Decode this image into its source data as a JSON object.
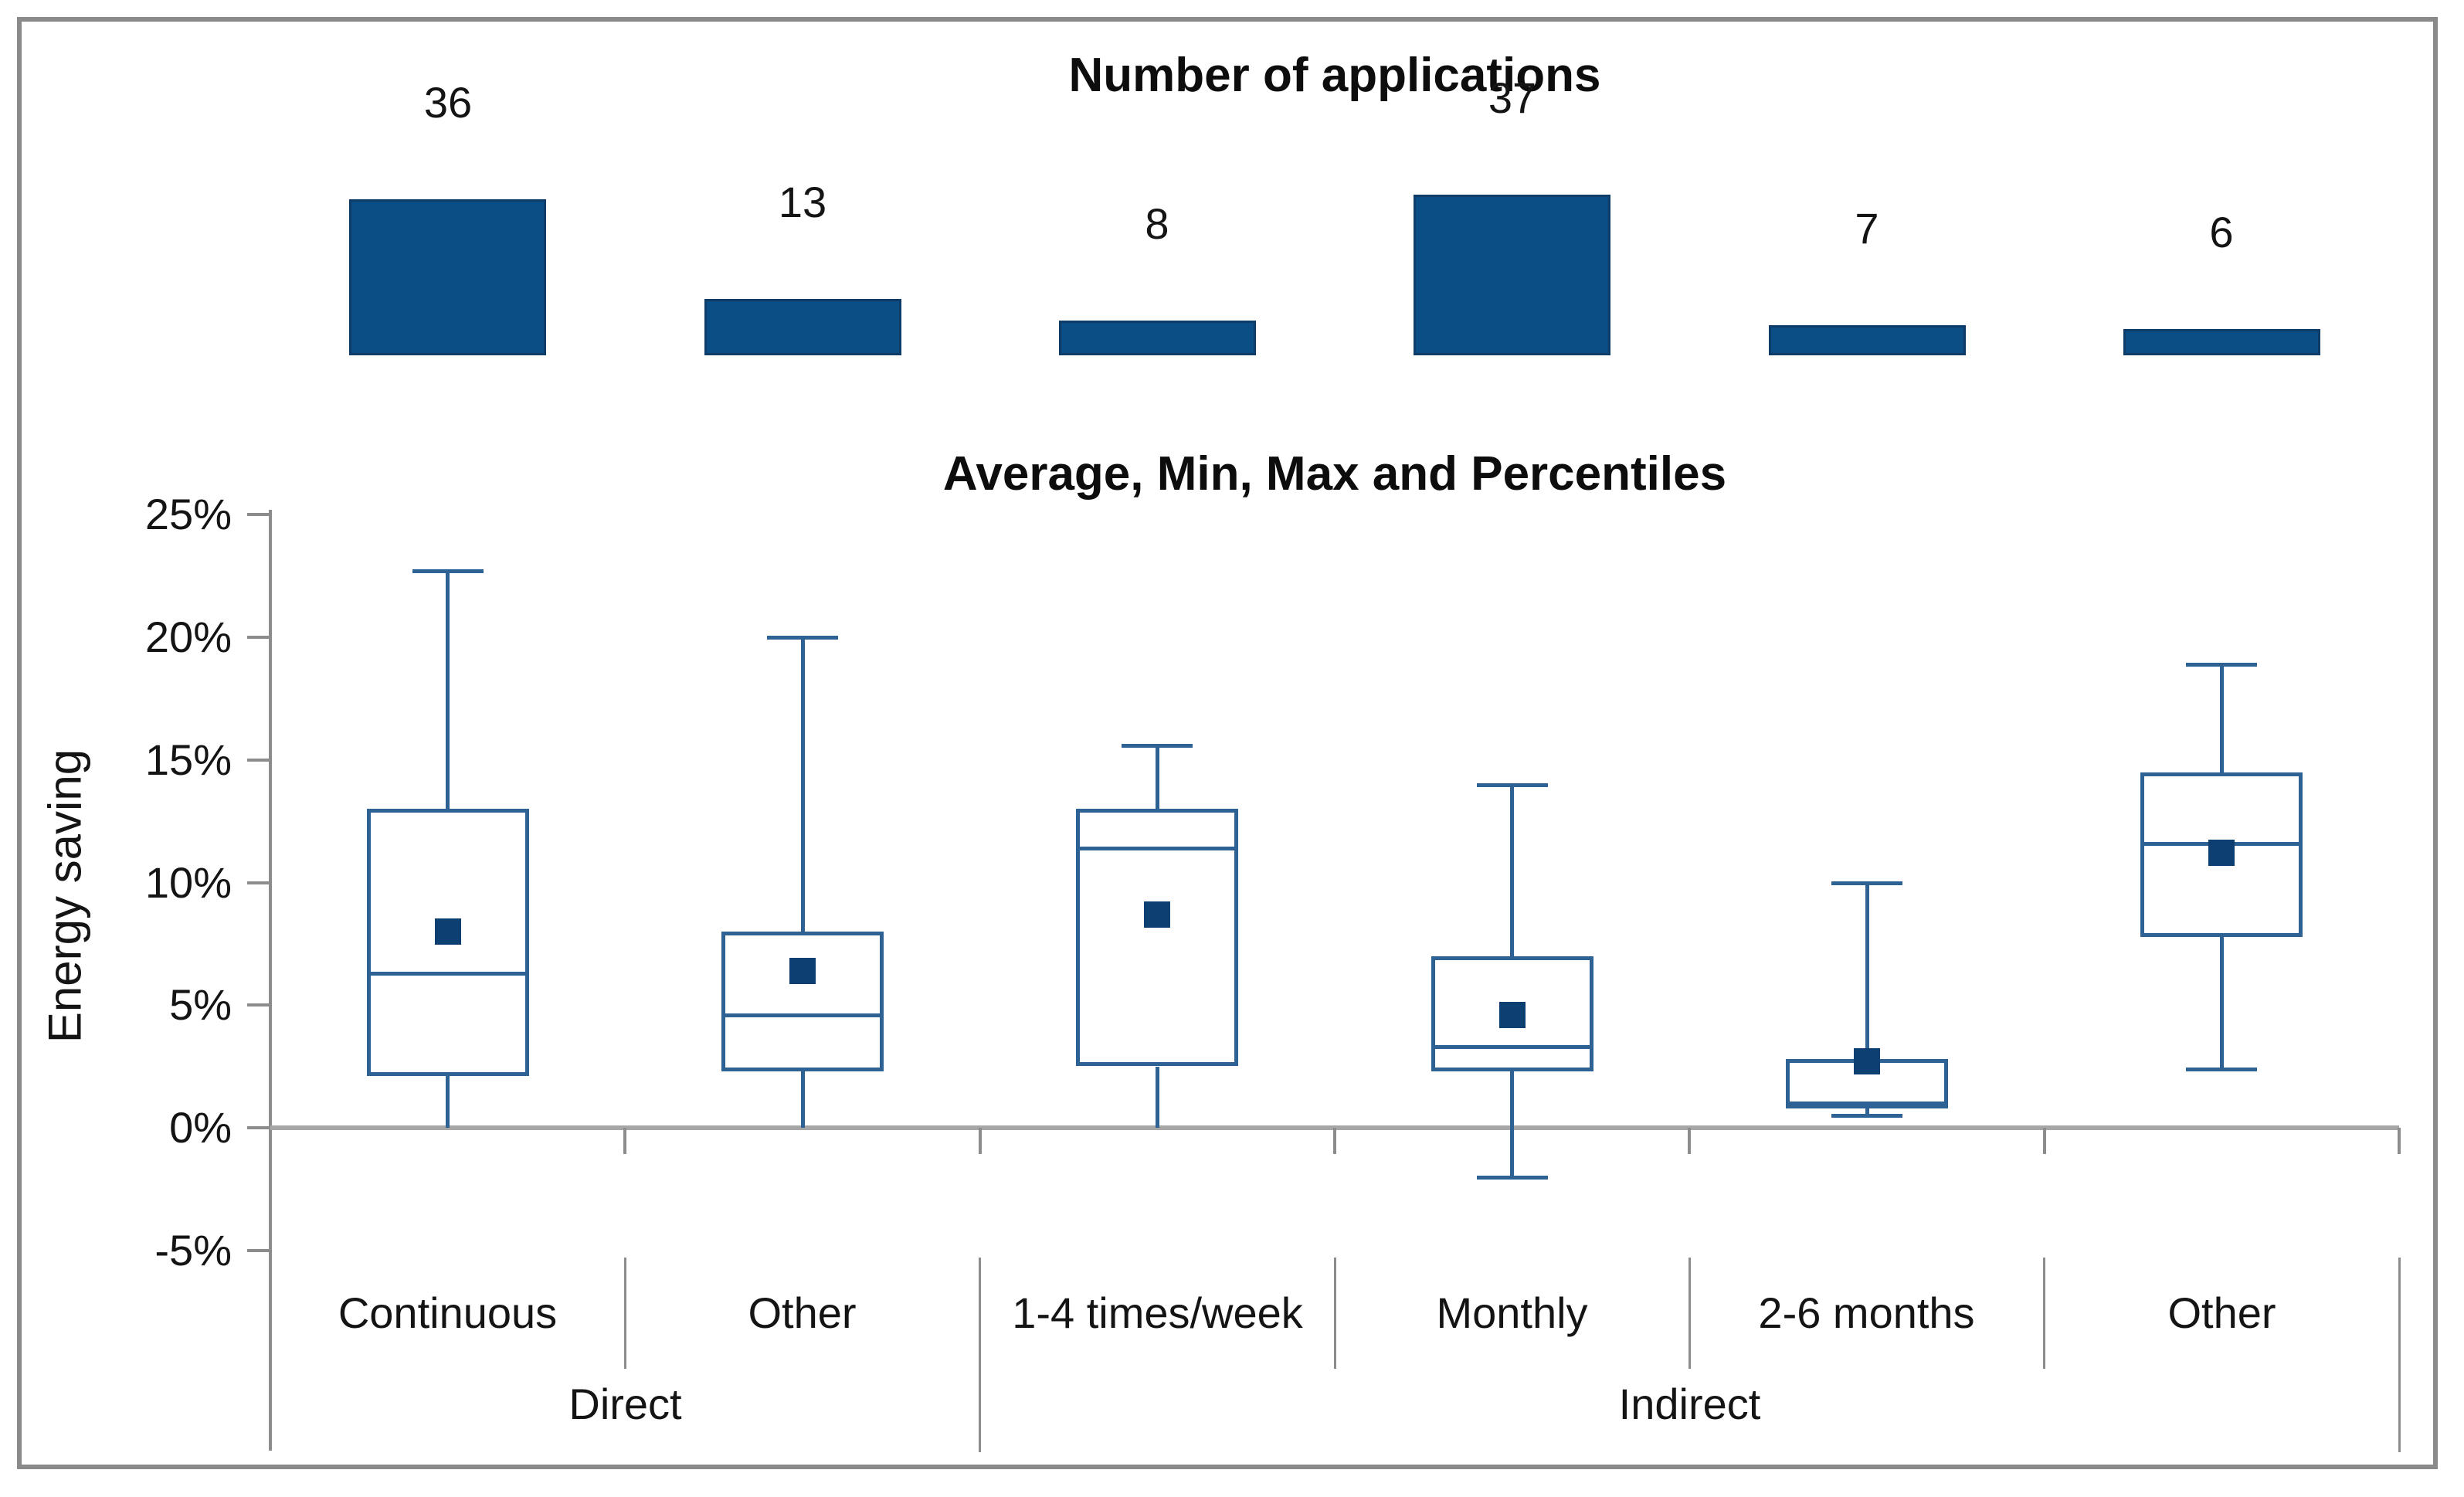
{
  "bar_section": {
    "title": "Number of applications"
  },
  "box_section": {
    "title": "Average, Min, Max and Percentiles",
    "y_axis_title": "Energy saving"
  },
  "x_axis": {
    "categories": [
      "Continuous",
      "Other",
      "1-4 times/week",
      "Monthly",
      "2-6 months",
      "Other"
    ],
    "groups": [
      {
        "label": "Direct",
        "span": 2
      },
      {
        "label": "Indirect",
        "span": 4
      }
    ]
  },
  "colors": {
    "bar_fill": "#0b4d85",
    "box_line": "#2e6295",
    "mean_marker": "#0d3f72",
    "axis_gray": "#a6a6a6"
  },
  "chart_data": [
    {
      "type": "bar",
      "title": "Number of applications",
      "categories": [
        "Continuous",
        "Other",
        "1-4 times/week",
        "Monthly",
        "2-6 months",
        "Other"
      ],
      "values": [
        36,
        13,
        8,
        37,
        7,
        6
      ],
      "xlabel": "",
      "ylabel": "",
      "legend": "none",
      "grid": false
    },
    {
      "type": "box",
      "title": "Average, Min, Max and Percentiles",
      "xlabel": "",
      "ylabel": "Energy saving",
      "ylim": [
        -5,
        25
      ],
      "grid": false,
      "y_ticks": [
        {
          "label": "25%",
          "value": 25
        },
        {
          "label": "20%",
          "value": 20
        },
        {
          "label": "15%",
          "value": 15
        },
        {
          "label": "10%",
          "value": 10
        },
        {
          "label": "5%",
          "value": 5
        },
        {
          "label": "0%",
          "value": 0
        },
        {
          "label": "-5%",
          "value": -5
        }
      ],
      "series": [
        {
          "category": "Continuous",
          "group": "Direct",
          "min": 0,
          "q1": 2.1,
          "median": 6.3,
          "mean": 8.0,
          "q3": 13.0,
          "max": 22.7
        },
        {
          "category": "Other",
          "group": "Direct",
          "min": 0,
          "q1": 2.3,
          "median": 4.6,
          "mean": 6.4,
          "q3": 8.0,
          "max": 20.0
        },
        {
          "category": "1-4 times/week",
          "group": "Indirect",
          "min": 0,
          "q1": 2.5,
          "median": 11.4,
          "mean": 8.7,
          "q3": 13.0,
          "max": 15.6
        },
        {
          "category": "Monthly",
          "group": "Indirect",
          "min": -2.0,
          "q1": 2.3,
          "median": 3.3,
          "mean": 4.6,
          "q3": 7.0,
          "max": 14.0
        },
        {
          "category": "2-6 months",
          "group": "Indirect",
          "min": 0.5,
          "q1": 0.8,
          "median": 1.0,
          "mean": 2.7,
          "q3": 2.8,
          "max": 10.0
        },
        {
          "category": "Other",
          "group": "Indirect",
          "min": 2.4,
          "q1": 7.8,
          "median": 11.6,
          "mean": 11.2,
          "q3": 14.5,
          "max": 18.9
        }
      ]
    }
  ]
}
